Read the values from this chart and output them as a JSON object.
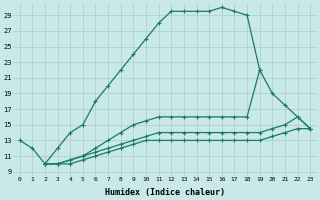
{
  "xlabel": "Humidex (Indice chaleur)",
  "bg_color": "#c9e8e8",
  "grid_color": "#b0d8d8",
  "line_color": "#1a7a6a",
  "xlim": [
    -0.5,
    23.5
  ],
  "ylim": [
    8.5,
    30.5
  ],
  "xtick_labels": [
    "0",
    "1",
    "2",
    "3",
    "4",
    "5",
    "6",
    "7",
    "8",
    "9",
    "10",
    "11",
    "12",
    "13",
    "14",
    "15",
    "16",
    "17",
    "18",
    "19",
    "20",
    "21",
    "22",
    "23"
  ],
  "ytick_labels": [
    "9",
    "11",
    "13",
    "15",
    "17",
    "19",
    "21",
    "23",
    "25",
    "27",
    "29"
  ],
  "ytick_vals": [
    9,
    11,
    13,
    15,
    17,
    19,
    21,
    23,
    25,
    27,
    29
  ],
  "s1_x": [
    0,
    1,
    2,
    3,
    4,
    5,
    6,
    7,
    8,
    9,
    10,
    11,
    12,
    13,
    14,
    15,
    16,
    17,
    18,
    19
  ],
  "s1_y": [
    13,
    12,
    10,
    12,
    14,
    15,
    18,
    20,
    22,
    24,
    26,
    28,
    29.5,
    29.5,
    29.5,
    29.5,
    30,
    29.5,
    29,
    22
  ],
  "s2_x": [
    2,
    3,
    4,
    5,
    6,
    7,
    8,
    9,
    10,
    11,
    12,
    13,
    14,
    15,
    16,
    17,
    18,
    19,
    20,
    21,
    22,
    23
  ],
  "s2_y": [
    10,
    10,
    10.5,
    11,
    12,
    13,
    14,
    15,
    15.5,
    16,
    16,
    16,
    16,
    16,
    16,
    16,
    16,
    22,
    19,
    17.5,
    16,
    14.5
  ],
  "s3_x": [
    2,
    3,
    4,
    5,
    6,
    7,
    8,
    9,
    10,
    11,
    12,
    13,
    14,
    15,
    16,
    17,
    18,
    19,
    20,
    21,
    22,
    23
  ],
  "s3_y": [
    10,
    10,
    10.5,
    11,
    11.5,
    12,
    12.5,
    13,
    13.5,
    14,
    14,
    14,
    14,
    14,
    14,
    14,
    14,
    14,
    14.5,
    15,
    16,
    14.5
  ],
  "s4_x": [
    2,
    3,
    4,
    5,
    6,
    7,
    8,
    9,
    10,
    11,
    12,
    13,
    14,
    15,
    16,
    17,
    18,
    19,
    20,
    21,
    22,
    23
  ],
  "s4_y": [
    10,
    10,
    10,
    10.5,
    11,
    11.5,
    12,
    12.5,
    13,
    13,
    13,
    13,
    13,
    13,
    13,
    13,
    13,
    13,
    13.5,
    14,
    14.5,
    14.5
  ]
}
